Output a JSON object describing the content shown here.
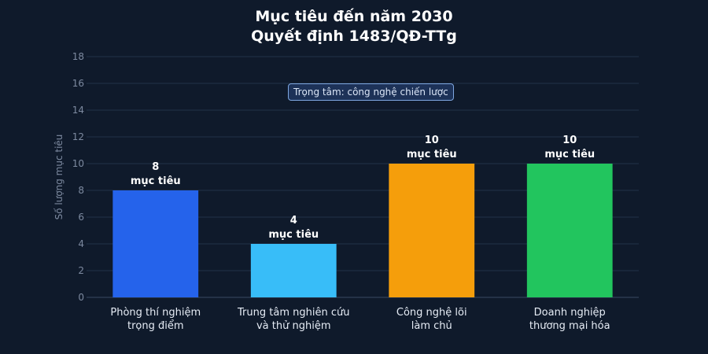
{
  "chart_data": {
    "type": "bar",
    "title": "Mục tiêu đến năm 2030",
    "subtitle": "Quyết định 1483/QĐ-TTg",
    "ylabel": "Số lượng mục tiêu",
    "xlabel": "",
    "ylim": [
      0,
      18
    ],
    "yticks": [
      0,
      2,
      4,
      6,
      8,
      10,
      12,
      14,
      16,
      18
    ],
    "grid": true,
    "categories": [
      [
        "Phòng thí nghiệm",
        "trọng điểm"
      ],
      [
        "Trung tâm nghiên cứu",
        "và thử nghiệm"
      ],
      [
        "Công nghệ lõi",
        "làm chủ"
      ],
      [
        "Doanh nghiệp",
        "thương mại hóa"
      ]
    ],
    "values": [
      8,
      4,
      10,
      10
    ],
    "data_label_unit": "mục tiêu",
    "colors": [
      "#2563eb",
      "#38bdf8",
      "#f59e0b",
      "#22c55e"
    ],
    "annotation": "Trọng tâm: công nghệ chiến lược"
  }
}
